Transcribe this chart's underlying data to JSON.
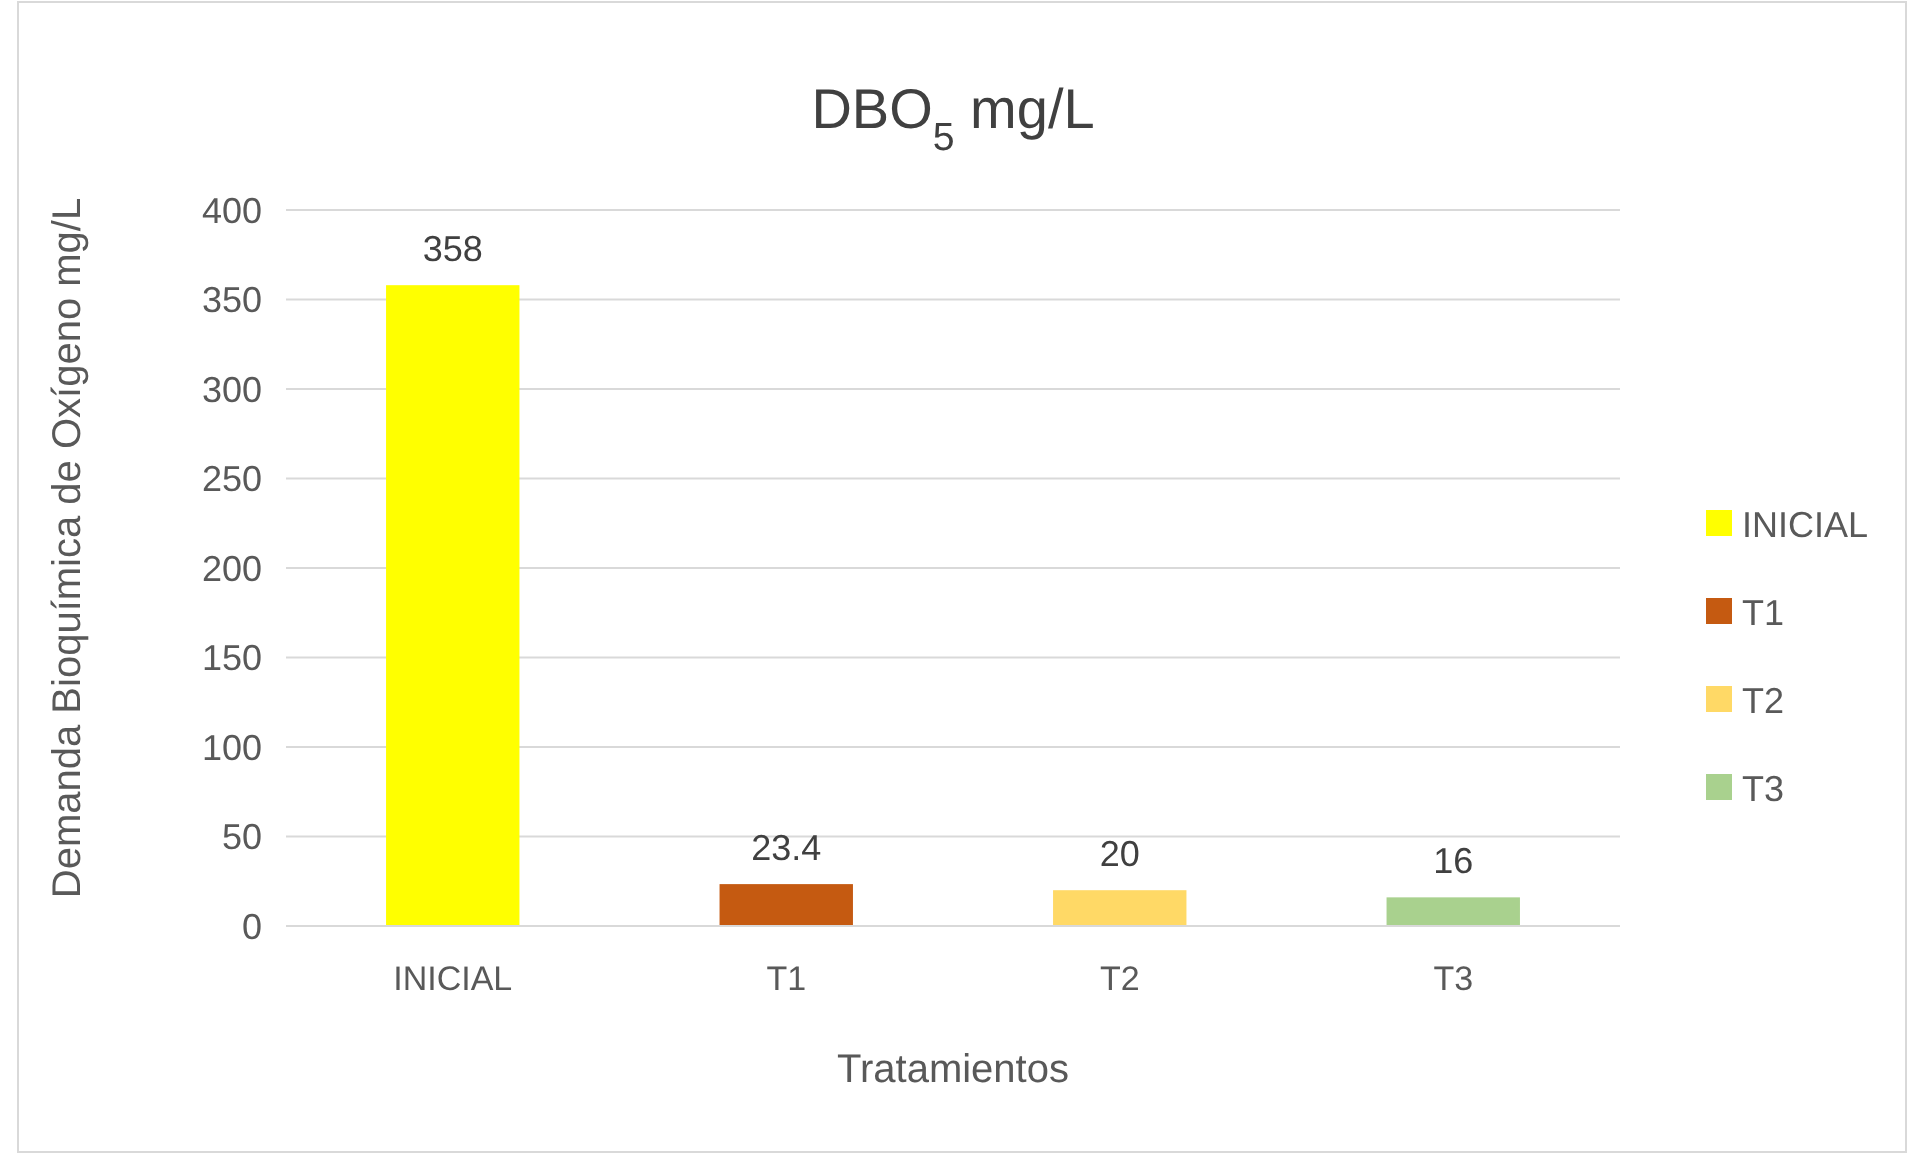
{
  "chart_data": {
    "type": "bar",
    "title": "DBO$_{5}$ mg/L",
    "xlabel": "Tratamientos",
    "ylabel": "Demanda Bioquímica de Oxígeno mg/L",
    "categories": [
      "INICIAL",
      "T1",
      "T2",
      "T3"
    ],
    "series": [
      {
        "name": "INICIAL",
        "color": "#ffff00",
        "values": [
          358,
          null,
          null,
          null
        ]
      },
      {
        "name": "T1",
        "color": "#c55a11",
        "values": [
          null,
          23.4,
          null,
          null
        ]
      },
      {
        "name": "T2",
        "color": "#ffd966",
        "values": [
          null,
          null,
          20,
          null
        ]
      },
      {
        "name": "T3",
        "color": "#a9d18e",
        "values": [
          null,
          null,
          null,
          16
        ]
      }
    ],
    "ylim": [
      0,
      400
    ],
    "yticks": [
      0,
      50,
      100,
      150,
      200,
      250,
      300,
      350,
      400
    ],
    "grid": "y",
    "legend": "right",
    "data_labels": true
  }
}
